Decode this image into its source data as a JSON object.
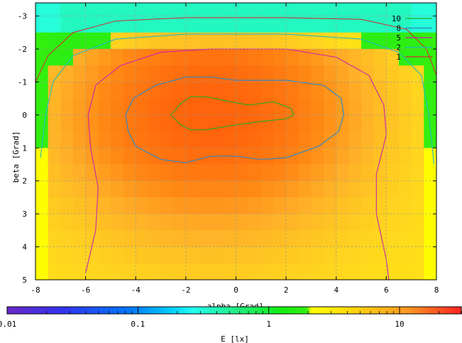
{
  "chart_data": {
    "type": "heatmap",
    "title": "",
    "xlabel": "alpha [Grad]",
    "ylabel": "beta [Grad]",
    "xlim": [
      -8,
      8
    ],
    "ylim": [
      -3.4,
      5
    ],
    "y_inverted": true,
    "grid": true,
    "xticks": [
      "-8",
      "-6",
      "-4",
      "-2",
      "0",
      "2",
      "4",
      "6",
      "8"
    ],
    "yticks": [
      "-3",
      "-2",
      "-1",
      "0",
      "1",
      "2",
      "3",
      "4",
      "5"
    ],
    "heatmap": {
      "description_of_field": "illuminance E in lx over (alpha, beta), cell size 0.5 x 0.5",
      "peak_alpha": -1.0,
      "peak_beta": 0.0,
      "peak_E": 17,
      "outer_band_E": 1.8,
      "sat_top_beta": -2.1,
      "sat_bottom_beta": 1.2,
      "side_alpha": 7.5
    },
    "contours": {
      "legend_position": "top-right",
      "levels": [
        {
          "label": "10",
          "value": 10,
          "color": "#22aa22",
          "points": [
            [
              -2.6,
              0
            ],
            [
              -2.2,
              -0.35
            ],
            [
              -1.8,
              -0.55
            ],
            [
              -1.2,
              -0.55
            ],
            [
              -0.2,
              -0.4
            ],
            [
              0.5,
              -0.3
            ],
            [
              1.5,
              -0.4
            ],
            [
              2.2,
              -0.2
            ],
            [
              2.3,
              0
            ],
            [
              2.0,
              0.12
            ],
            [
              1.0,
              0.2
            ],
            [
              0,
              0.3
            ],
            [
              -1.2,
              0.45
            ],
            [
              -1.8,
              0.45
            ],
            [
              -2.2,
              0.3
            ],
            [
              -2.6,
              0
            ]
          ]
        },
        {
          "label": "8",
          "value": 8,
          "color": "#2288cc",
          "points": [
            [
              -4.4,
              0
            ],
            [
              -4.1,
              -0.5
            ],
            [
              -3.2,
              -0.9
            ],
            [
              -2.0,
              -1.15
            ],
            [
              -1.0,
              -1.15
            ],
            [
              0.0,
              -1.05
            ],
            [
              1.0,
              -1.05
            ],
            [
              2.0,
              -1.05
            ],
            [
              3.5,
              -0.9
            ],
            [
              4.2,
              -0.5
            ],
            [
              4.3,
              0
            ],
            [
              4.1,
              0.5
            ],
            [
              3.3,
              0.95
            ],
            [
              2.0,
              1.3
            ],
            [
              1.0,
              1.35
            ],
            [
              0.0,
              1.25
            ],
            [
              -1.0,
              1.25
            ],
            [
              -2.0,
              1.45
            ],
            [
              -3.0,
              1.35
            ],
            [
              -4.0,
              0.95
            ],
            [
              -4.3,
              0.5
            ],
            [
              -4.4,
              0
            ]
          ]
        },
        {
          "label": "5",
          "value": 5,
          "color": "#cc22aa",
          "points": [
            [
              -6.0,
              4.8
            ],
            [
              -5.6,
              3.5
            ],
            [
              -5.5,
              2.2
            ],
            [
              -5.8,
              1.0
            ],
            [
              -5.9,
              0
            ],
            [
              -5.6,
              -0.9
            ],
            [
              -4.6,
              -1.5
            ],
            [
              -3.0,
              -1.9
            ],
            [
              -1.0,
              -2.0
            ],
            [
              0.5,
              -2.0
            ],
            [
              2.0,
              -2.0
            ],
            [
              4.0,
              -1.75
            ],
            [
              5.3,
              -1.2
            ],
            [
              5.9,
              -0.3
            ],
            [
              6.0,
              0.6
            ],
            [
              5.6,
              1.8
            ],
            [
              5.6,
              3.0
            ],
            [
              6.0,
              4.4
            ],
            [
              6.1,
              5.0
            ]
          ]
        },
        {
          "label": "2",
          "value": 2,
          "color": "#22bbbb",
          "points": [
            [
              -7.8,
              1.3
            ],
            [
              -7.6,
              0
            ],
            [
              -7.3,
              -1.0
            ],
            [
              -6.5,
              -1.8
            ],
            [
              -4.8,
              -2.3
            ],
            [
              -2.0,
              -2.45
            ],
            [
              2.0,
              -2.45
            ],
            [
              5.0,
              -2.3
            ],
            [
              6.5,
              -1.9
            ],
            [
              7.4,
              -1.2
            ],
            [
              7.7,
              0.0
            ],
            [
              7.9,
              1.5
            ]
          ]
        },
        {
          "label": "1",
          "value": 1,
          "color": "#cc3333",
          "points": [
            [
              -8.0,
              -1.0
            ],
            [
              -7.5,
              -1.8
            ],
            [
              -6.5,
              -2.5
            ],
            [
              -4.8,
              -2.85
            ],
            [
              -2.0,
              -2.95
            ],
            [
              2.0,
              -2.95
            ],
            [
              5.0,
              -2.9
            ],
            [
              6.8,
              -2.6
            ],
            [
              7.6,
              -2.0
            ],
            [
              8.0,
              -1.2
            ]
          ]
        }
      ]
    },
    "colorbar": {
      "label": "E [lx]",
      "scale": "log",
      "range": [
        0.01,
        30
      ],
      "ticks": [
        "0.01",
        "0.1",
        "1",
        "10"
      ]
    }
  }
}
